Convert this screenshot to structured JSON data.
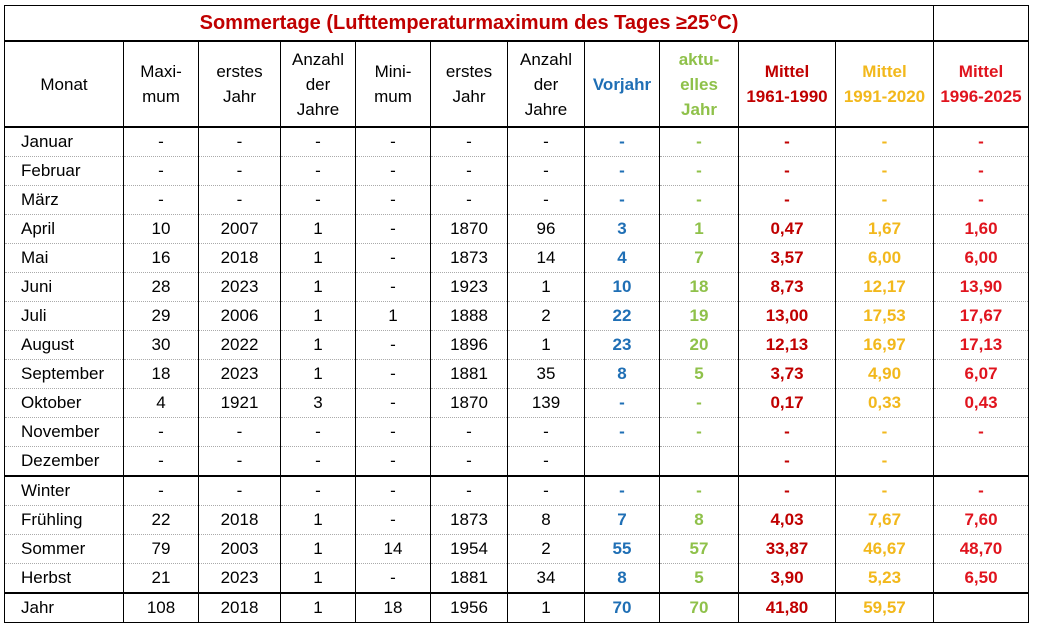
{
  "title": "Sommertage (Lufttemperaturmaximum des Tages ≥25°C)",
  "headers": [
    {
      "l1": "Monat",
      "l2": "",
      "l3": ""
    },
    {
      "l1": "Maxi-",
      "l2": "mum",
      "l3": ""
    },
    {
      "l1": "erstes",
      "l2": "Jahr",
      "l3": ""
    },
    {
      "l1": "Anzahl",
      "l2": "der",
      "l3": "Jahre"
    },
    {
      "l1": "Mini-",
      "l2": "mum",
      "l3": ""
    },
    {
      "l1": "erstes",
      "l2": "Jahr",
      "l3": ""
    },
    {
      "l1": "Anzahl",
      "l2": "der",
      "l3": "Jahre"
    },
    {
      "l1": "Vorjahr",
      "l2": "",
      "l3": ""
    },
    {
      "l1": "aktu-",
      "l2": "elles",
      "l3": "Jahr"
    },
    {
      "l1": "Mittel",
      "l2": "1961-1990",
      "l3": ""
    },
    {
      "l1": "Mittel",
      "l2": "1991-2020",
      "l3": ""
    },
    {
      "l1": "Mittel",
      "l2": "1996-2025",
      "l3": ""
    }
  ],
  "colors": {
    "title": "#c00000",
    "vorjahr": "#1f6fb5",
    "aktuell": "#8fc14a",
    "mittel_1961_1990": "#c00000",
    "mittel_1991_2020": "#f2b81c",
    "mittel_1996_2025": "#e0141e"
  },
  "rows": [
    {
      "monat": "Januar",
      "c": [
        "-",
        "-",
        "-",
        "-",
        "-",
        "-",
        "-",
        "-",
        "-",
        "-",
        "-"
      ]
    },
    {
      "monat": "Februar",
      "c": [
        "-",
        "-",
        "-",
        "-",
        "-",
        "-",
        "-",
        "-",
        "-",
        "-",
        "-"
      ]
    },
    {
      "monat": "März",
      "c": [
        "-",
        "-",
        "-",
        "-",
        "-",
        "-",
        "-",
        "-",
        "-",
        "-",
        "-"
      ]
    },
    {
      "monat": "April",
      "c": [
        "10",
        "2007",
        "1",
        "-",
        "1870",
        "96",
        "3",
        "1",
        "0,47",
        "1,67",
        "1,60"
      ]
    },
    {
      "monat": "Mai",
      "c": [
        "16",
        "2018",
        "1",
        "-",
        "1873",
        "14",
        "4",
        "7",
        "3,57",
        "6,00",
        "6,00"
      ]
    },
    {
      "monat": "Juni",
      "c": [
        "28",
        "2023",
        "1",
        "-",
        "1923",
        "1",
        "10",
        "18",
        "8,73",
        "12,17",
        "13,90"
      ]
    },
    {
      "monat": "Juli",
      "c": [
        "29",
        "2006",
        "1",
        "1",
        "1888",
        "2",
        "22",
        "19",
        "13,00",
        "17,53",
        "17,67"
      ]
    },
    {
      "monat": "August",
      "c": [
        "30",
        "2022",
        "1",
        "-",
        "1896",
        "1",
        "23",
        "20",
        "12,13",
        "16,97",
        "17,13"
      ]
    },
    {
      "monat": "September",
      "c": [
        "18",
        "2023",
        "1",
        "-",
        "1881",
        "35",
        "8",
        "5",
        "3,73",
        "4,90",
        "6,07"
      ]
    },
    {
      "monat": "Oktober",
      "c": [
        "4",
        "1921",
        "3",
        "-",
        "1870",
        "139",
        "-",
        "-",
        "0,17",
        "0,33",
        "0,43"
      ]
    },
    {
      "monat": "November",
      "c": [
        "-",
        "-",
        "-",
        "-",
        "-",
        "-",
        "-",
        "-",
        "-",
        "-",
        "-"
      ]
    },
    {
      "monat": "Dezember",
      "c": [
        "-",
        "-",
        "-",
        "-",
        "-",
        "-",
        "",
        "",
        "-",
        "-",
        ""
      ]
    },
    {
      "monat": "Winter",
      "c": [
        "-",
        "-",
        "-",
        "-",
        "-",
        "-",
        "-",
        "-",
        "-",
        "-",
        "-"
      ]
    },
    {
      "monat": "Frühling",
      "c": [
        "22",
        "2018",
        "1",
        "-",
        "1873",
        "8",
        "7",
        "8",
        "4,03",
        "7,67",
        "7,60"
      ]
    },
    {
      "monat": "Sommer",
      "c": [
        "79",
        "2003",
        "1",
        "14",
        "1954",
        "2",
        "55",
        "57",
        "33,87",
        "46,67",
        "48,70"
      ]
    },
    {
      "monat": "Herbst",
      "c": [
        "21",
        "2023",
        "1",
        "-",
        "1881",
        "34",
        "8",
        "5",
        "3,90",
        "5,23",
        "6,50"
      ]
    },
    {
      "monat": "Jahr",
      "c": [
        "108",
        "2018",
        "1",
        "18",
        "1956",
        "1",
        "70",
        "70",
        "41,80",
        "59,57",
        ""
      ]
    }
  ]
}
